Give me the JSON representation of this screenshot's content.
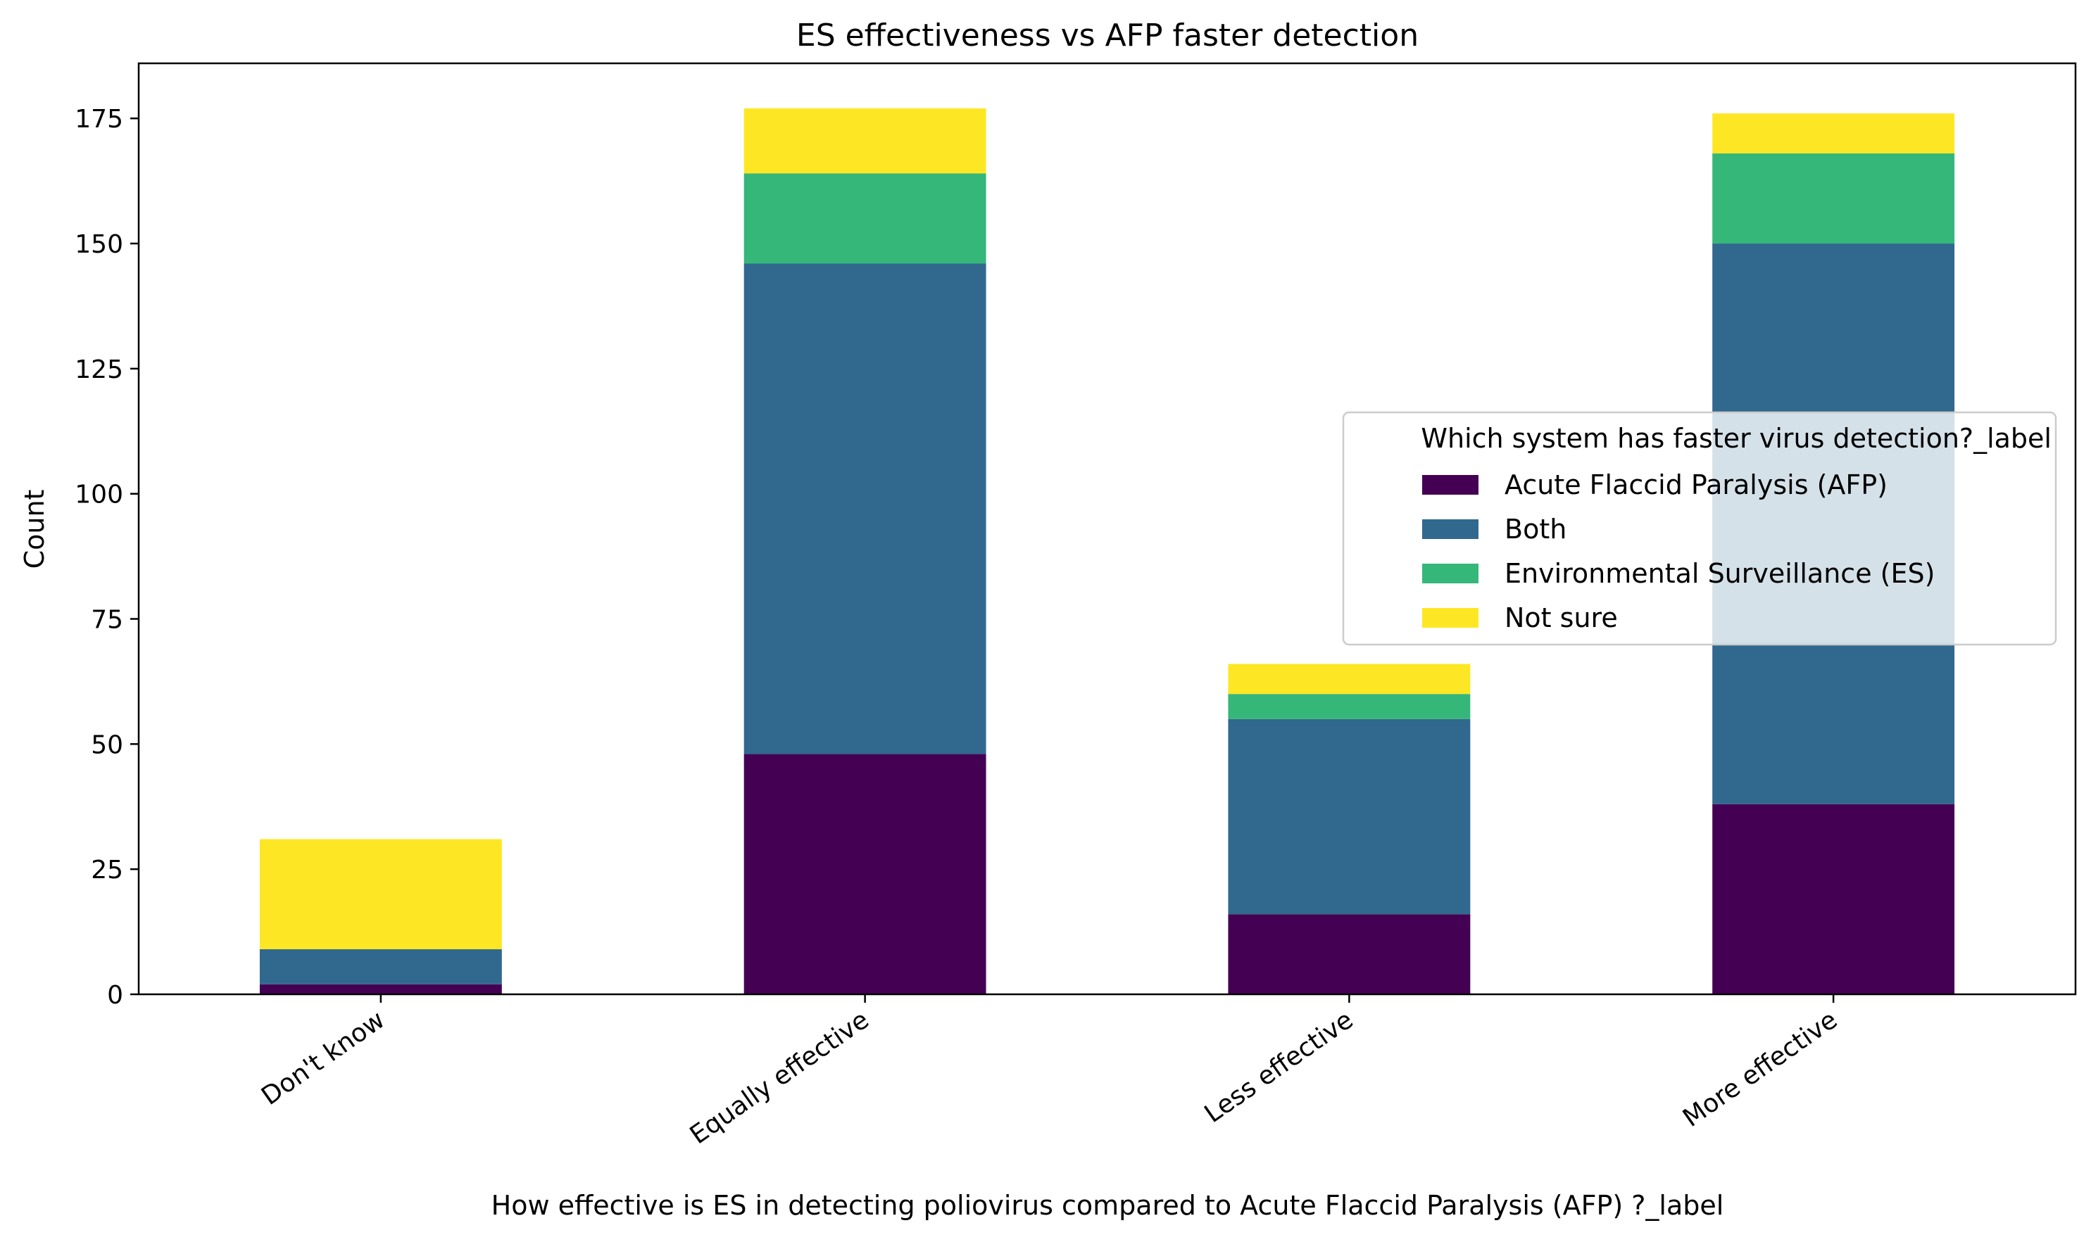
{
  "chart_data": {
    "type": "bar",
    "stacked": true,
    "title": "ES effectiveness vs AFP faster detection",
    "xlabel": "How effective is ES in detecting poliovirus compared to  Acute Flaccid Paralysis (AFP) ?_label",
    "ylabel": "Count",
    "ylim": [
      0,
      186
    ],
    "yticks": [
      0,
      25,
      50,
      75,
      100,
      125,
      150,
      175
    ],
    "categories": [
      "Don't know",
      "Equally effective",
      "Less effective",
      "More effective"
    ],
    "series": [
      {
        "name": "Acute Flaccid Paralysis (AFP)",
        "color": "#440154",
        "values": [
          2,
          48,
          16,
          38
        ]
      },
      {
        "name": "Both",
        "color": "#31688e",
        "values": [
          7,
          98,
          39,
          112
        ]
      },
      {
        "name": "Environmental Surveillance (ES)",
        "color": "#35b779",
        "values": [
          0,
          18,
          5,
          18
        ]
      },
      {
        "name": "Not sure",
        "color": "#fde725",
        "values": [
          22,
          13,
          6,
          8
        ]
      }
    ],
    "grid": false,
    "legend": {
      "title": "Which system has faster virus detection?_label",
      "placement": "center-right"
    }
  }
}
